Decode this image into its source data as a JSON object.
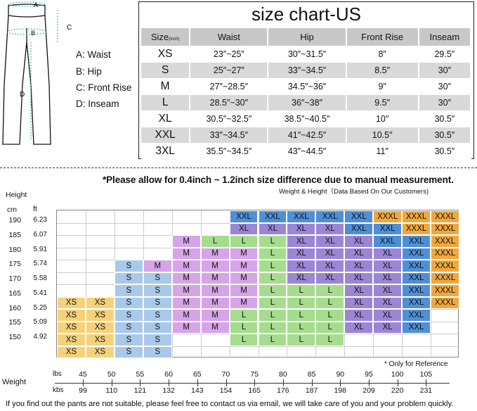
{
  "diagram": {
    "letters": {
      "a": "A",
      "b": "B",
      "c": "C",
      "d": "D"
    },
    "legend": [
      "A: Waist",
      "B: Hip",
      "C: Front Rise",
      "D: Inseam"
    ]
  },
  "size_table": {
    "title": "size chart-US",
    "header": {
      "size": "Size",
      "unit": "(Inch)",
      "waist": "Waist",
      "hip": "Hip",
      "front_rise": "Front Rise",
      "inseam": "Inseam"
    },
    "rows": [
      {
        "size": "XS",
        "waist": "23″~25″",
        "hip": "30″~31.5″",
        "front_rise": "8″",
        "inseam": "29.5″"
      },
      {
        "size": "S",
        "waist": "25″~27″",
        "hip": "33″~34.5″",
        "front_rise": "8.5″",
        "inseam": "30″"
      },
      {
        "size": "M",
        "waist": "27″~28.5″",
        "hip": "34.5″~36″",
        "front_rise": "9″",
        "inseam": "30″"
      },
      {
        "size": "L",
        "waist": "28.5″~30″",
        "hip": "36″~38″",
        "front_rise": "9.5″",
        "inseam": "30″"
      },
      {
        "size": "XL",
        "waist": "30.5″~32.5″",
        "hip": "38.5″~40.5″",
        "front_rise": "10″",
        "inseam": "30.5″"
      },
      {
        "size": "XXL",
        "waist": "33″~34.5″",
        "hip": "41″~42.5″",
        "front_rise": "10.5″",
        "inseam": "30.5″"
      },
      {
        "size": "3XL",
        "waist": "35.5″~34.5″",
        "hip": "43″~44.5″",
        "front_rise": "11″",
        "inseam": "30.5″"
      }
    ]
  },
  "note": "*Please allow for 0.4inch ~ 1.2inch size difference due to manual measurement.",
  "weight_height_note": "Weight & Height（Data Based On Our Customers)",
  "height_chart": {
    "height_label": "Height",
    "cm_label": "cm",
    "ft_label": "ft",
    "cm_ticks": [
      "190",
      "185",
      "180",
      "175",
      "170",
      "165",
      "160",
      "155",
      "150"
    ],
    "ft_ticks": [
      "6.23",
      "6.07",
      "5.91",
      "5.74",
      "5.58",
      "5.41",
      "5.25",
      "5.09",
      "4.92"
    ],
    "rows": [
      [
        "",
        "",
        "",
        "",
        "",
        "",
        "XXL",
        "XXL",
        "XXL",
        "XXL",
        "XXL",
        "XXXL",
        "XXXL",
        "XXXL"
      ],
      [
        "",
        "",
        "",
        "",
        "",
        "",
        "XL",
        "XL",
        "XL",
        "XL",
        "XXL",
        "XXL",
        "XXXL",
        "XXXL"
      ],
      [
        "",
        "",
        "",
        "",
        "M",
        "L",
        "L",
        "L",
        "XL",
        "XL",
        "XL",
        "XXL",
        "XXL",
        "XXXL"
      ],
      [
        "",
        "",
        "",
        "",
        "M",
        "M",
        "M",
        "L",
        "XL",
        "XL",
        "XL",
        "XL",
        "XXL",
        "XXXL"
      ],
      [
        "",
        "",
        "S",
        "M",
        "M",
        "M",
        "M",
        "L",
        "XL",
        "XL",
        "XL",
        "XL",
        "XXL",
        "XXXL"
      ],
      [
        "",
        "",
        "S",
        "S",
        "M",
        "M",
        "M",
        "L",
        "XL",
        "XL",
        "XL",
        "XL",
        "XXL",
        "XXXL"
      ],
      [
        "",
        "",
        "S",
        "S",
        "M",
        "M",
        "M",
        "L",
        "L",
        "L",
        "XL",
        "XL",
        "XXL",
        "XXXL"
      ],
      [
        "XS",
        "XS",
        "S",
        "S",
        "M",
        "M",
        "M",
        "L",
        "L",
        "L",
        "XL",
        "XL",
        "XXL",
        "XXXL"
      ],
      [
        "XS",
        "XS",
        "S",
        "S",
        "M",
        "M",
        "L",
        "L",
        "L",
        "L",
        "XL",
        "XL",
        "XXL",
        ""
      ],
      [
        "XS",
        "XS",
        "S",
        "S",
        "M",
        "M",
        "L",
        "L",
        "L",
        "L",
        "XL",
        "XL",
        "XXL",
        ""
      ],
      [
        "XS",
        "XS",
        "S",
        "S",
        "",
        "",
        "L",
        "L",
        "L",
        "L",
        "",
        "",
        "",
        ""
      ],
      [
        "XS",
        "XS",
        "S",
        "S",
        "",
        "",
        "",
        "",
        "",
        "",
        "",
        "",
        "",
        ""
      ]
    ],
    "colors": {
      "XS": "#f5d27a",
      "S": "#a9c9ea",
      "M": "#d6a4e8",
      "L": "#a6dc8e",
      "XL": "#9b86d4",
      "XXL": "#4f8fd6",
      "XXXL": "#f0a83c"
    },
    "reference_note": "* Only for Reference"
  },
  "weight_axis": {
    "label": "Weight",
    "lbs_label": "lbs",
    "kbs_label": "kbs",
    "lbs_ticks": [
      "45",
      "50",
      "55",
      "60",
      "65",
      "70",
      "75",
      "80",
      "85",
      "90",
      "95",
      "100",
      "105"
    ],
    "kbs_ticks": [
      "99",
      "110",
      "121",
      "132",
      "143",
      "154",
      "165",
      "176",
      "187",
      "198",
      "209",
      "220",
      "231"
    ]
  },
  "footer": "If you find out the pants are not suitable, please feel free to contact us via email, we will take care of you and your problem quickly."
}
